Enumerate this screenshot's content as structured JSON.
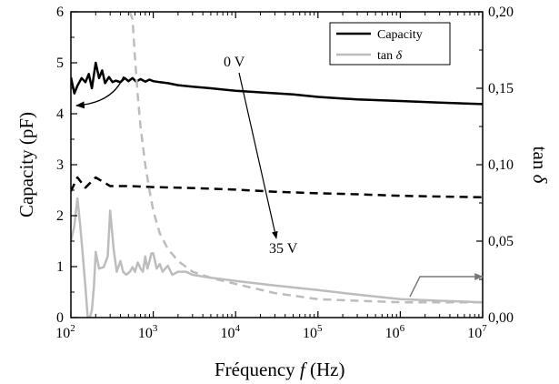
{
  "chart_data": {
    "type": "line",
    "title": "",
    "xlabel": "Fréquency f (Hz)",
    "xlabel_main": "Fréquency ",
    "xlabel_var": "f",
    "xlabel_unit": " (Hz)",
    "ylabel": "Capacity (pF)",
    "y2label": "tan δ",
    "y2label_main": "tan ",
    "y2label_var": "δ",
    "xscale": "log",
    "xlim": [
      100,
      10000000
    ],
    "ylim": [
      0,
      6
    ],
    "y2lim": [
      0,
      0.2
    ],
    "x_ticks": [
      {
        "base": "10",
        "exp": "2"
      },
      {
        "base": "10",
        "exp": "3"
      },
      {
        "base": "10",
        "exp": "4"
      },
      {
        "base": "10",
        "exp": "5"
      },
      {
        "base": "10",
        "exp": "6"
      },
      {
        "base": "10",
        "exp": "7"
      }
    ],
    "x_tick_values": [
      100,
      1000,
      10000,
      100000,
      1000000,
      10000000
    ],
    "y_tick_labels": [
      "0",
      "1",
      "2",
      "3",
      "4",
      "5",
      "6"
    ],
    "y_tick_values": [
      0,
      1,
      2,
      3,
      4,
      5,
      6
    ],
    "y2_tick_labels": [
      "0,00",
      "0,05",
      "0,10",
      "0,15",
      "0,20"
    ],
    "y2_tick_values": [
      0,
      0.05,
      0.1,
      0.15,
      0.2
    ],
    "legend": {
      "position": "top-right",
      "entries": [
        {
          "label": "Capacity",
          "color": "#000000"
        },
        {
          "label_main": "tan ",
          "label_var": "δ",
          "color": "#bdbdbd"
        }
      ]
    },
    "annotations": {
      "top_voltage": "0 V",
      "bottom_voltage": "35 V"
    },
    "series": [
      {
        "color": "#000000",
        "axis": "left",
        "dash": "solid",
        "width": 2.5,
        "x": [
          100,
          110,
          120,
          135,
          150,
          165,
          180,
          200,
          220,
          240,
          260,
          290,
          320,
          350,
          400,
          450,
          500,
          560,
          620,
          700,
          800,
          900,
          1000,
          1200,
          1500,
          2000,
          3000,
          5000,
          10000,
          20000,
          50000,
          100000,
          300000,
          1000000,
          3000000,
          10000000
        ],
        "y": [
          4.72,
          4.4,
          4.55,
          4.7,
          4.62,
          4.78,
          4.5,
          5.0,
          4.7,
          4.85,
          4.6,
          4.72,
          4.62,
          4.65,
          4.62,
          4.7,
          4.64,
          4.7,
          4.63,
          4.68,
          4.63,
          4.67,
          4.64,
          4.62,
          4.6,
          4.56,
          4.53,
          4.5,
          4.45,
          4.42,
          4.38,
          4.33,
          4.28,
          4.25,
          4.22,
          4.19
        ]
      },
      {
        "color": "#000000",
        "axis": "left",
        "dash": "dashed",
        "width": 2.5,
        "x": [
          100,
          120,
          150,
          200,
          300,
          500,
          1000,
          2000,
          5000,
          10000,
          30000,
          100000,
          300000,
          1000000,
          10000000
        ],
        "y": [
          2.48,
          2.75,
          2.55,
          2.75,
          2.58,
          2.58,
          2.56,
          2.55,
          2.53,
          2.51,
          2.47,
          2.44,
          2.42,
          2.39,
          2.36
        ]
      },
      {
        "color": "#bdbdbd",
        "axis": "right",
        "dash": "solid",
        "width": 2.5,
        "x": [
          100,
          110,
          120,
          130,
          140,
          150,
          160,
          170,
          180,
          190,
          200,
          220,
          250,
          280,
          300,
          330,
          360,
          400,
          430,
          470,
          520,
          560,
          600,
          650,
          700,
          750,
          800,
          850,
          900,
          950,
          1000,
          1100,
          1200,
          1300,
          1500,
          1700,
          2000,
          2500,
          3000,
          5000,
          10000,
          30000,
          100000,
          300000,
          1000000,
          3000000,
          10000000
        ],
        "y": [
          0.05,
          0.06,
          0.078,
          0.06,
          0.04,
          0.02,
          0.0,
          0.0,
          0.005,
          0.02,
          0.043,
          0.032,
          0.033,
          0.04,
          0.07,
          0.045,
          0.03,
          0.037,
          0.03,
          0.028,
          0.03,
          0.033,
          0.03,
          0.036,
          0.032,
          0.03,
          0.04,
          0.032,
          0.037,
          0.042,
          0.042,
          0.032,
          0.035,
          0.03,
          0.034,
          0.028,
          0.03,
          0.03,
          0.028,
          0.026,
          0.024,
          0.021,
          0.018,
          0.015,
          0.012,
          0.011,
          0.01
        ]
      },
      {
        "color": "#bdbdbd",
        "axis": "right",
        "dash": "dashed",
        "width": 2.5,
        "x": [
          520,
          560,
          600,
          650,
          700,
          800,
          900,
          1000,
          1200,
          1500,
          2000,
          3000,
          5000,
          10000,
          30000,
          100000,
          300000,
          1000000,
          10000000
        ],
        "y": [
          0.2,
          0.195,
          0.17,
          0.145,
          0.125,
          0.1,
          0.083,
          0.07,
          0.055,
          0.045,
          0.037,
          0.03,
          0.026,
          0.022,
          0.016,
          0.012,
          0.011,
          0.01,
          0.01
        ]
      }
    ]
  }
}
